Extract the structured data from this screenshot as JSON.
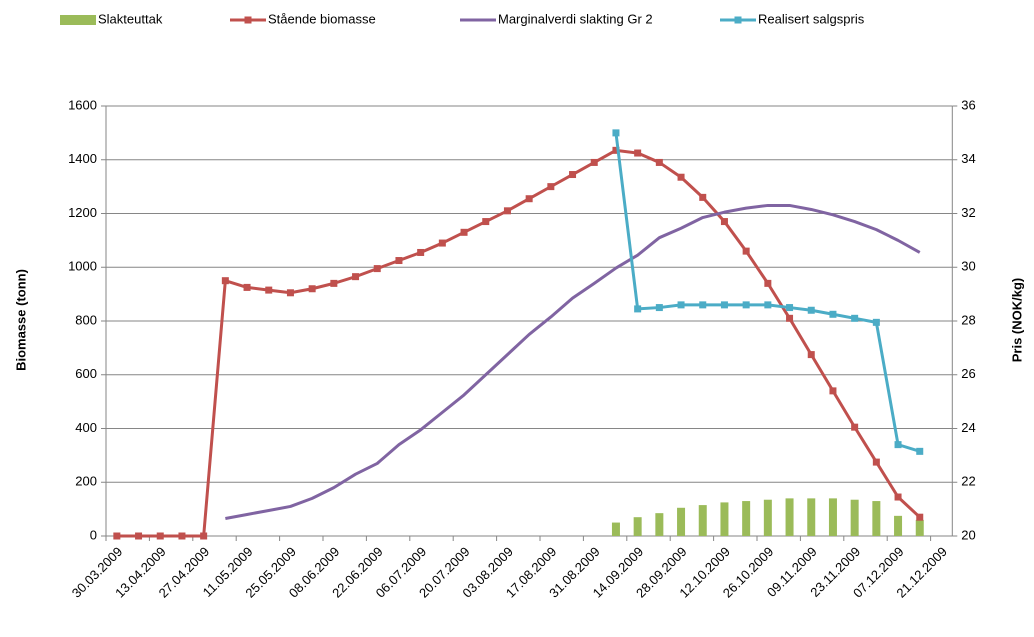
{
  "chart_data": {
    "type": "combo",
    "legend": "top",
    "y_label": "Biomasse (tonn)",
    "y2_label": "Pris (NOK/kg)",
    "categories": [
      "30.03.2009",
      null,
      "13.04.2009",
      null,
      "27.04.2009",
      null,
      "11.05.2009",
      null,
      "25.05.2009",
      null,
      "08.06.2009",
      null,
      "22.06.2009",
      null,
      "06.07.2009",
      null,
      "20.07.2009",
      null,
      "03.08.2009",
      null,
      "17.08.2009",
      null,
      "31.08.2009",
      null,
      "14.09.2009",
      null,
      "28.09.2009",
      null,
      "12.10.2009",
      null,
      "26.10.2009",
      null,
      "09.11.2009",
      null,
      "23.11.2009",
      null,
      "07.12.2009",
      null,
      "21.12.2009"
    ],
    "ylim": [
      0,
      1600
    ],
    "yticks": [
      0,
      200,
      400,
      600,
      800,
      1000,
      1200,
      1400,
      1600
    ],
    "y2lim": [
      20,
      36
    ],
    "y2ticks": [
      20,
      22,
      24,
      26,
      28,
      30,
      32,
      34,
      36
    ],
    "grid": true,
    "series": [
      {
        "name": "Slakteuttak",
        "type": "bar",
        "color": "#9bbb59",
        "values": [
          null,
          null,
          null,
          null,
          null,
          null,
          null,
          null,
          null,
          null,
          null,
          null,
          null,
          null,
          null,
          null,
          null,
          null,
          null,
          null,
          null,
          null,
          null,
          50,
          70,
          85,
          105,
          115,
          125,
          130,
          135,
          140,
          140,
          140,
          135,
          130,
          75,
          60,
          null
        ]
      },
      {
        "name": "Stående biomasse",
        "type": "line",
        "marker": "square",
        "color": "#c0504d",
        "values": [
          0,
          0,
          0,
          0,
          0,
          950,
          925,
          915,
          905,
          920,
          940,
          965,
          995,
          1025,
          1055,
          1090,
          1130,
          1170,
          1210,
          1255,
          1300,
          1345,
          1390,
          1435,
          1425,
          1390,
          1335,
          1260,
          1170,
          1060,
          940,
          810,
          675,
          540,
          405,
          275,
          145,
          70,
          null
        ]
      },
      {
        "name": "Marginalverdi slakting Gr 2",
        "type": "line",
        "color": "#8064a2",
        "axis": "y2",
        "values": [
          null,
          null,
          null,
          null,
          null,
          20.65,
          20.8,
          20.95,
          21.1,
          21.4,
          21.8,
          22.3,
          22.7,
          23.4,
          23.95,
          24.6,
          25.25,
          26.0,
          26.75,
          27.5,
          28.15,
          28.85,
          29.4,
          29.97,
          30.45,
          31.1,
          31.45,
          31.85,
          32.05,
          32.2,
          32.3,
          32.3,
          32.15,
          31.95,
          31.7,
          31.4,
          31.0,
          30.55,
          null
        ]
      },
      {
        "name": "Realisert salgspris",
        "type": "line",
        "marker": "square",
        "color": "#4bacc6",
        "axis": "y2",
        "values": [
          null,
          null,
          null,
          null,
          null,
          null,
          null,
          null,
          null,
          null,
          null,
          null,
          null,
          null,
          null,
          null,
          null,
          null,
          null,
          null,
          null,
          null,
          null,
          35.0,
          28.45,
          28.5,
          28.6,
          28.6,
          28.6,
          28.6,
          28.6,
          28.5,
          28.4,
          28.25,
          28.1,
          27.95,
          23.4,
          23.15,
          null
        ]
      }
    ]
  }
}
